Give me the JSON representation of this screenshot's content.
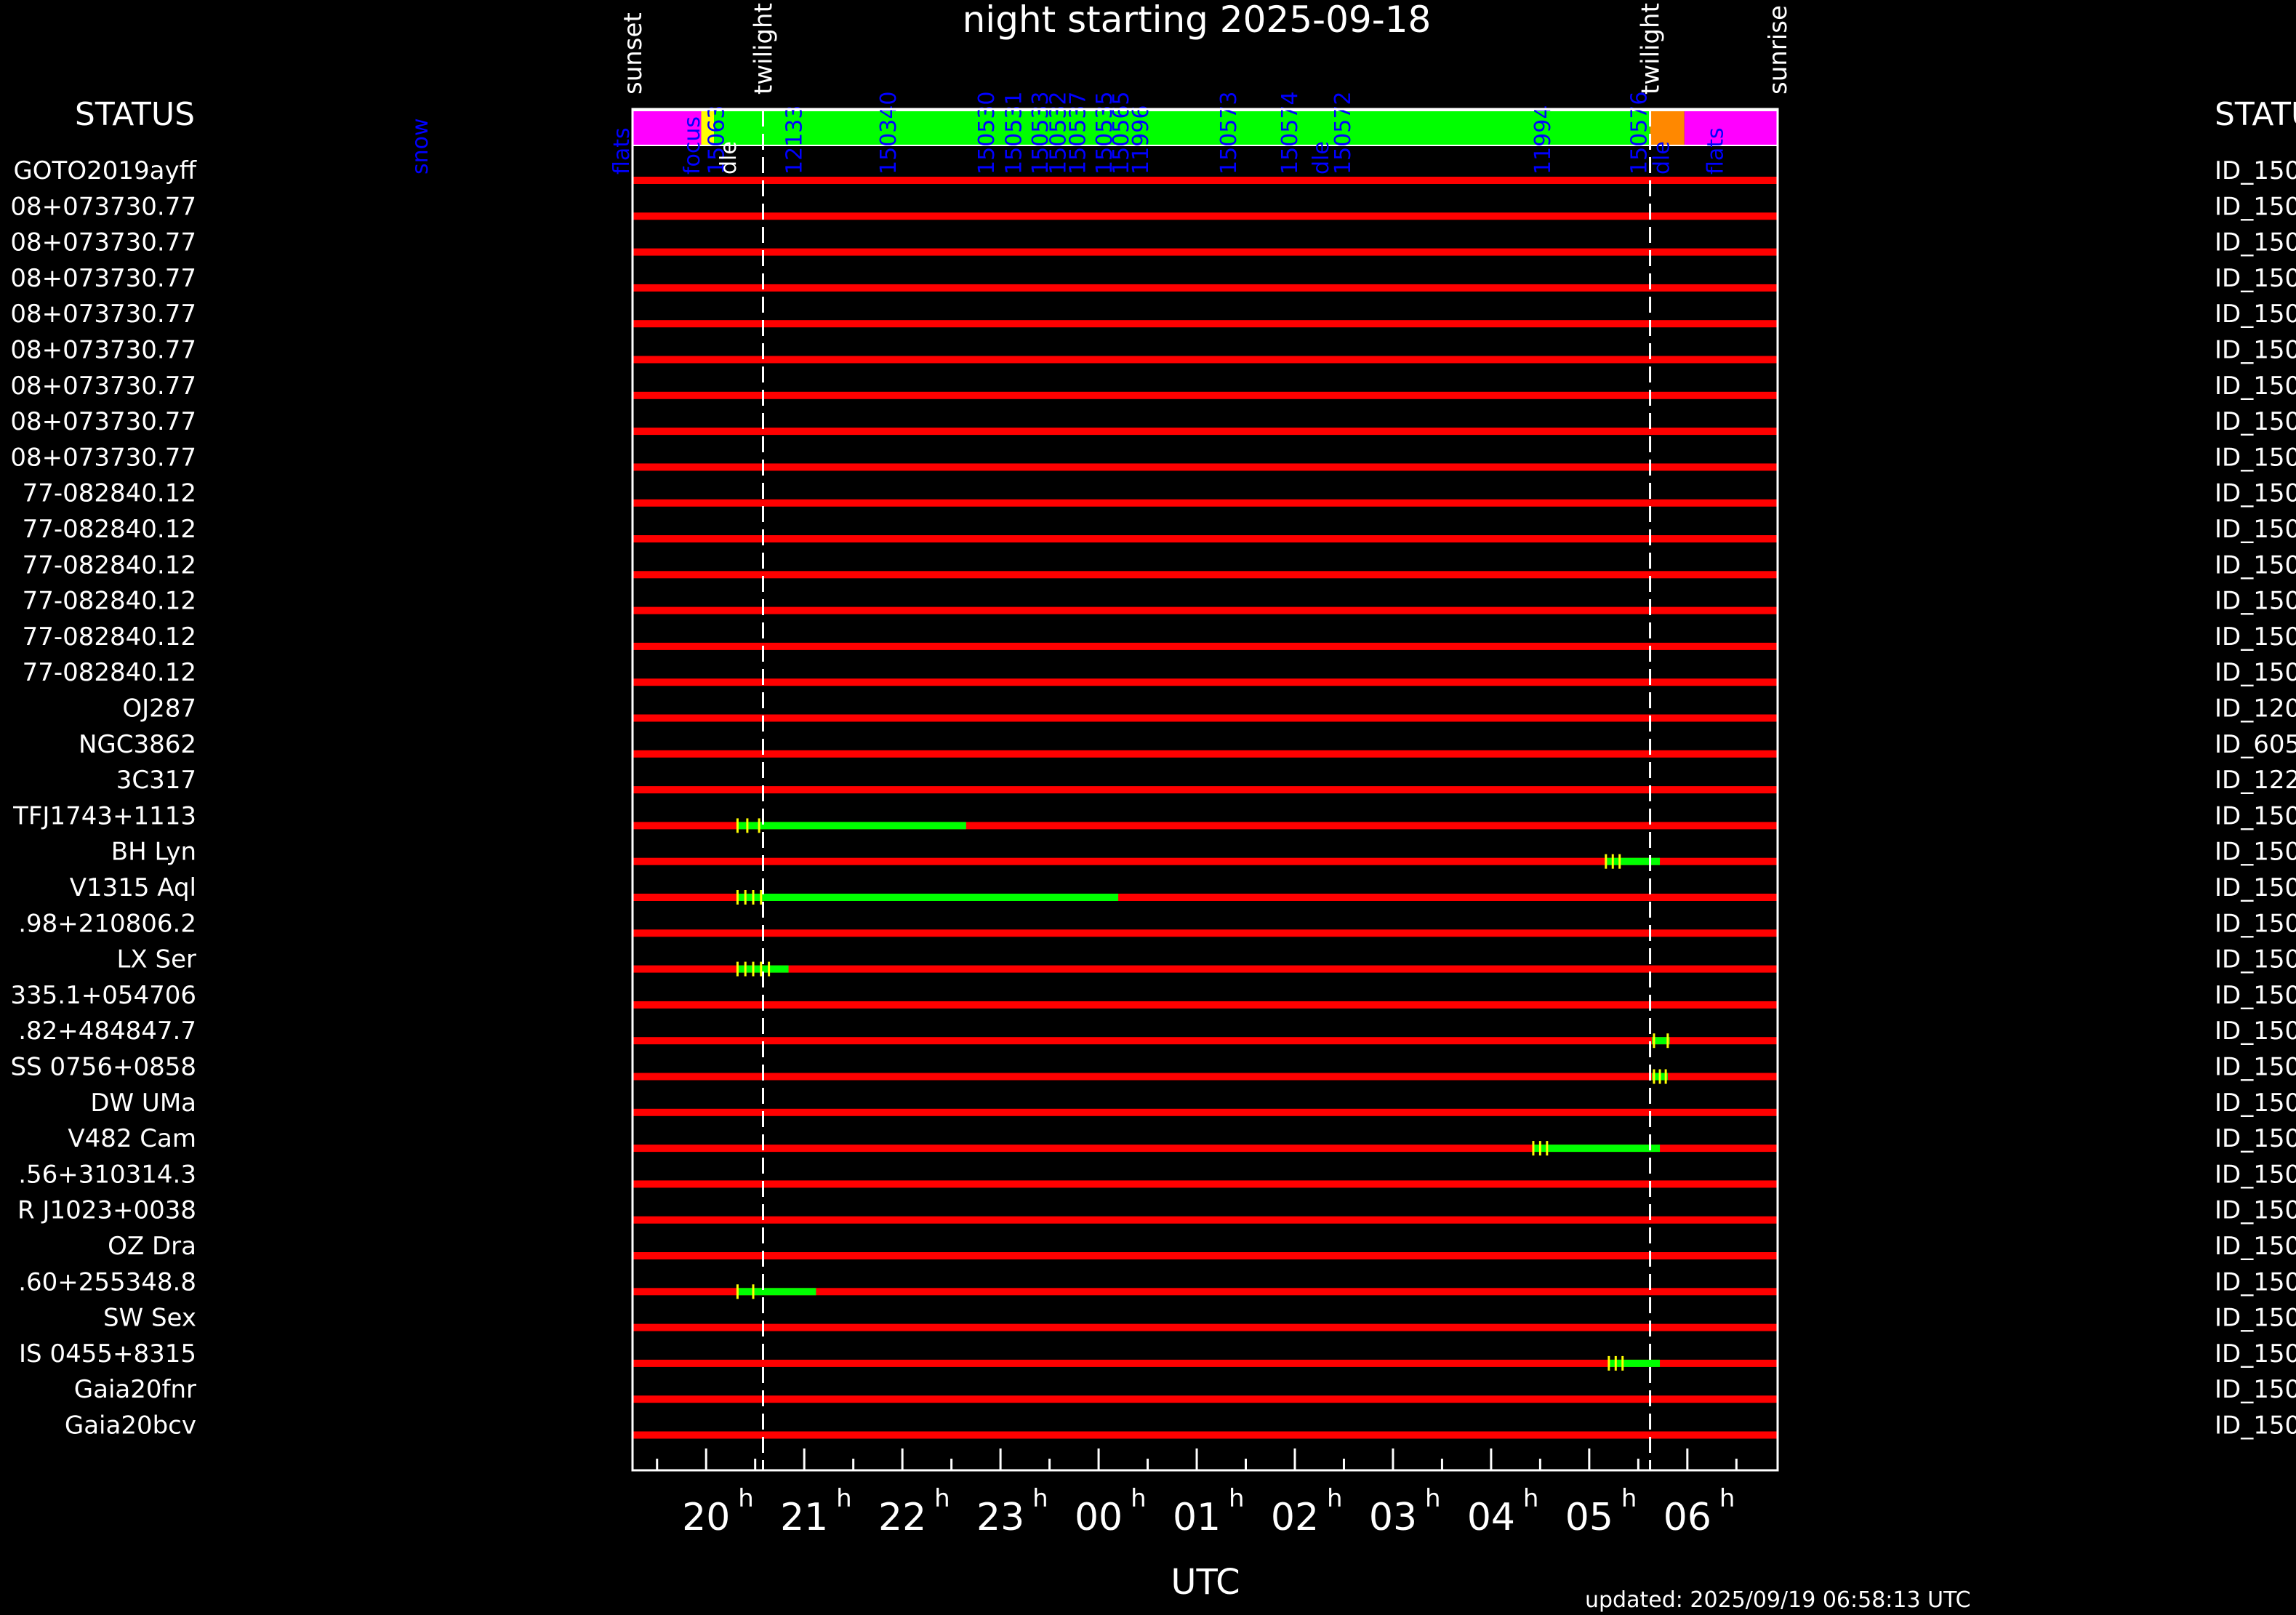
{
  "title": "night starting 2025-09-18",
  "xlabel": "UTC",
  "updated": "updated: 2025/09/19 06:58:13 UTC",
  "status_label_left": "STATUS",
  "status_label_right": "STATUS",
  "colors": {
    "background": "#000000",
    "axis": "#ffffff",
    "not_observed": "#ff0000",
    "observed": "#00ff00",
    "exposure_tick": "#ffff00",
    "status_flats": "#ff00ff",
    "status_focus": "#ffff00",
    "status_observing": "#00ff00",
    "status_orange": "#ff8800",
    "status_text": "#0000ff",
    "status_text_white": "#ffffff"
  },
  "chart_data": {
    "type": "gantt",
    "x_unit": "hours UTC (hours past midnight; negative = evening of 2025-09-18)",
    "xlim": [
      -4.75,
      6.92
    ],
    "x_ticks": [
      {
        "value": -4,
        "hour": "20",
        "sup": "h"
      },
      {
        "value": -3,
        "hour": "21",
        "sup": "h"
      },
      {
        "value": -2,
        "hour": "22",
        "sup": "h"
      },
      {
        "value": -1,
        "hour": "23",
        "sup": "h"
      },
      {
        "value": 0,
        "hour": "00",
        "sup": "h"
      },
      {
        "value": 1,
        "hour": "01",
        "sup": "h"
      },
      {
        "value": 2,
        "hour": "02",
        "sup": "h"
      },
      {
        "value": 3,
        "hour": "03",
        "sup": "h"
      },
      {
        "value": 4,
        "hour": "04",
        "sup": "h"
      },
      {
        "value": 5,
        "hour": "05",
        "sup": "h"
      },
      {
        "value": 6,
        "hour": "06",
        "sup": "h"
      }
    ],
    "minor_tick_step": 0.5,
    "events": [
      {
        "label": "sunset",
        "x": -4.75,
        "dashed": false
      },
      {
        "label": "twilight",
        "x": -3.42,
        "dashed": true
      },
      {
        "label": "twilight",
        "x": 5.62,
        "dashed": true
      },
      {
        "label": "sunrise",
        "x": 6.92,
        "dashed": false
      }
    ],
    "status_segments": [
      {
        "start": -4.75,
        "end": -4.05,
        "state": "flats"
      },
      {
        "start": -4.05,
        "end": -3.92,
        "state": "focus"
      },
      {
        "start": -3.92,
        "end": 5.62,
        "state": "observing"
      },
      {
        "start": 5.62,
        "end": 5.97,
        "state": "orange"
      },
      {
        "start": 5.97,
        "end": 6.92,
        "state": "flats"
      }
    ],
    "status_labels": [
      {
        "text": "flats",
        "x": -4.87,
        "color": "blue"
      },
      {
        "text": "snow",
        "x": -6.92,
        "color": "blue"
      },
      {
        "text": "focus",
        "x": -4.15,
        "color": "blue"
      },
      {
        "text": "15063",
        "x": -3.9,
        "color": "blue"
      },
      {
        "text": "dle",
        "x": -3.78,
        "color": "white"
      },
      {
        "text": "12133",
        "x": -3.11,
        "color": "blue"
      },
      {
        "text": "150340",
        "x": -2.15,
        "color": "blue"
      },
      {
        "text": "150530",
        "x": -1.15,
        "color": "blue"
      },
      {
        "text": "150531",
        "x": -0.87,
        "color": "blue"
      },
      {
        "text": "150533",
        "x": -0.6,
        "color": "blue"
      },
      {
        "text": "150532",
        "x": -0.42,
        "color": "blue"
      },
      {
        "text": "150537",
        "x": -0.22,
        "color": "blue"
      },
      {
        "text": "150535",
        "x": 0.05,
        "color": "blue"
      },
      {
        "text": "150565",
        "x": 0.22,
        "color": "blue"
      },
      {
        "text": "11996",
        "x": 0.42,
        "color": "blue"
      },
      {
        "text": "150573",
        "x": 1.32,
        "color": "blue"
      },
      {
        "text": "150574",
        "x": 1.94,
        "color": "blue"
      },
      {
        "text": "dle",
        "x": 2.26,
        "color": "blue"
      },
      {
        "text": "150572",
        "x": 2.48,
        "color": "blue"
      },
      {
        "text": "11994",
        "x": 4.52,
        "color": "blue"
      },
      {
        "text": "150576",
        "x": 5.5,
        "color": "blue"
      },
      {
        "text": "dle",
        "x": 5.73,
        "color": "blue"
      },
      {
        "text": "flats",
        "x": 6.28,
        "color": "blue"
      }
    ],
    "targets": [
      {
        "name": "GOTO2019ayff",
        "id": "ID_150",
        "observed": []
      },
      {
        "name": "08+073730.77",
        "id": "ID_150",
        "observed": []
      },
      {
        "name": "08+073730.77",
        "id": "ID_150",
        "observed": []
      },
      {
        "name": "08+073730.77",
        "id": "ID_150",
        "observed": []
      },
      {
        "name": "08+073730.77",
        "id": "ID_150",
        "observed": []
      },
      {
        "name": "08+073730.77",
        "id": "ID_150",
        "observed": []
      },
      {
        "name": "08+073730.77",
        "id": "ID_150",
        "observed": []
      },
      {
        "name": "08+073730.77",
        "id": "ID_150",
        "observed": []
      },
      {
        "name": "08+073730.77",
        "id": "ID_150",
        "observed": []
      },
      {
        "name": "77-082840.12",
        "id": "ID_150",
        "observed": []
      },
      {
        "name": "77-082840.12",
        "id": "ID_150",
        "observed": []
      },
      {
        "name": "77-082840.12",
        "id": "ID_150",
        "observed": []
      },
      {
        "name": "77-082840.12",
        "id": "ID_150",
        "observed": []
      },
      {
        "name": "77-082840.12",
        "id": "ID_150",
        "observed": []
      },
      {
        "name": "77-082840.12",
        "id": "ID_150",
        "observed": []
      },
      {
        "name": "OJ287",
        "id": "ID_120",
        "observed": []
      },
      {
        "name": "NGC3862",
        "id": "ID_605",
        "observed": []
      },
      {
        "name": "3C317",
        "id": "ID_122",
        "observed": []
      },
      {
        "name": "TFJ1743+1113",
        "id": "ID_150",
        "observed": [
          {
            "start": -3.68,
            "end": -1.35,
            "ticks": [
              -3.68,
              -3.58,
              -3.46
            ]
          }
        ]
      },
      {
        "name": "BH Lyn",
        "id": "ID_150",
        "observed": [
          {
            "start": 5.17,
            "end": 5.72,
            "ticks": [
              5.17,
              5.24,
              5.31
            ]
          }
        ]
      },
      {
        "name": "V1315 Aql",
        "id": "ID_150",
        "observed": [
          {
            "start": -3.68,
            "end": 0.2,
            "ticks": [
              -3.68,
              -3.6,
              -3.52,
              -3.44
            ]
          }
        ]
      },
      {
        "name": ".98+210806.2",
        "id": "ID_150",
        "observed": []
      },
      {
        "name": "LX Ser",
        "id": "ID_150",
        "observed": [
          {
            "start": -3.68,
            "end": -3.16,
            "ticks": [
              -3.68,
              -3.6,
              -3.52,
              -3.44,
              -3.36
            ]
          }
        ]
      },
      {
        "name": "335.1+054706",
        "id": "ID_150",
        "observed": []
      },
      {
        "name": ".82+484847.7",
        "id": "ID_150",
        "observed": [
          {
            "start": 5.64,
            "end": 5.82,
            "ticks": [
              5.66,
              5.8
            ]
          }
        ]
      },
      {
        "name": "SS 0756+0858",
        "id": "ID_150",
        "observed": [
          {
            "start": 5.64,
            "end": 5.8,
            "ticks": [
              5.66,
              5.72,
              5.78
            ]
          }
        ]
      },
      {
        "name": "DW UMa",
        "id": "ID_150",
        "observed": []
      },
      {
        "name": "V482 Cam",
        "id": "ID_150",
        "observed": [
          {
            "start": 4.43,
            "end": 5.72,
            "ticks": [
              4.43,
              4.5,
              4.57
            ]
          }
        ]
      },
      {
        "name": ".56+310314.3",
        "id": "ID_150",
        "observed": []
      },
      {
        "name": "R J1023+0038",
        "id": "ID_150",
        "observed": []
      },
      {
        "name": "OZ Dra",
        "id": "ID_150",
        "observed": []
      },
      {
        "name": ".60+255348.8",
        "id": "ID_150",
        "observed": [
          {
            "start": -3.68,
            "end": -2.88,
            "ticks": [
              -3.68,
              -3.52
            ]
          }
        ]
      },
      {
        "name": "SW Sex",
        "id": "ID_150",
        "observed": []
      },
      {
        "name": "IS 0455+8315",
        "id": "ID_150",
        "observed": [
          {
            "start": 5.2,
            "end": 5.72,
            "ticks": [
              5.2,
              5.27,
              5.34
            ]
          }
        ]
      },
      {
        "name": "Gaia20fnr",
        "id": "ID_150",
        "observed": []
      },
      {
        "name": "Gaia20bcv",
        "id": "ID_150",
        "observed": []
      }
    ]
  }
}
